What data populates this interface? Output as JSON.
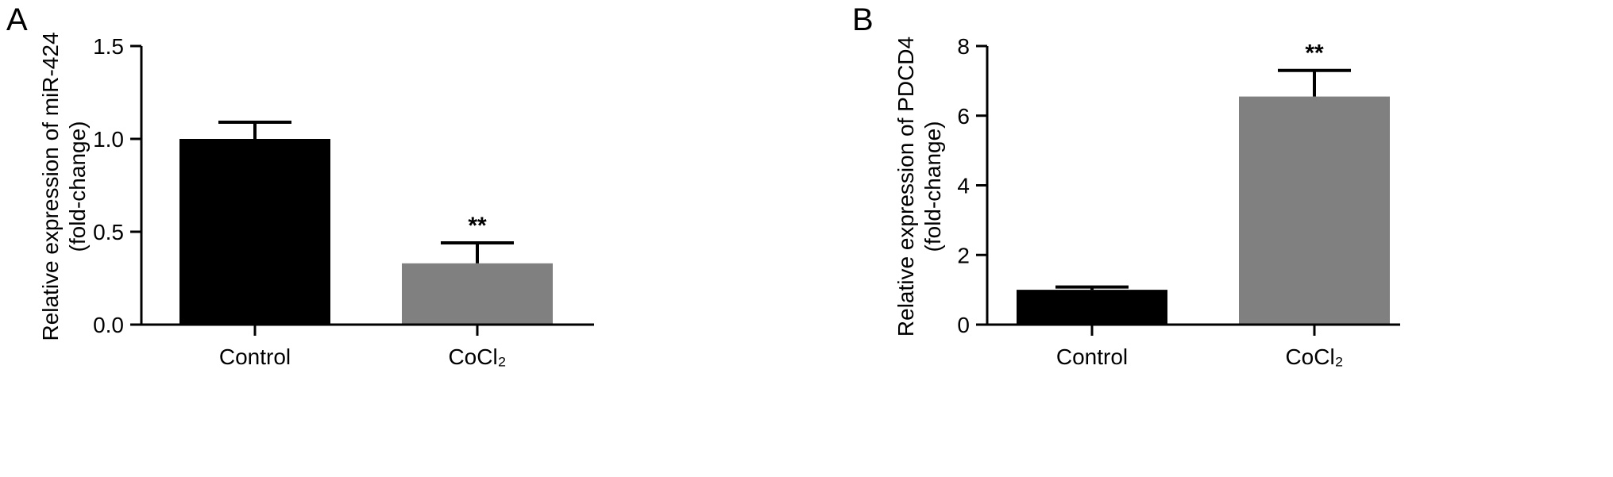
{
  "chart_data": [
    {
      "type": "bar",
      "panel_label": "A",
      "categories": [
        "Control",
        "CoCl₂"
      ],
      "values": [
        1.0,
        0.33
      ],
      "errors": [
        0.09,
        0.11
      ],
      "significance": [
        "",
        "**"
      ],
      "bar_colors": [
        "#000000",
        "#808080"
      ],
      "ylabel": "Relative expression of miR-424",
      "ylabel_line2": "(fold-change)",
      "ylim": [
        0,
        1.5
      ],
      "yticks": [
        0.0,
        0.5,
        1.0,
        1.5
      ],
      "ytick_labels": [
        "0.0",
        "0.5",
        "1.0",
        "1.5"
      ],
      "grid": false
    },
    {
      "type": "bar",
      "panel_label": "B",
      "categories": [
        "Control",
        "CoCl₂"
      ],
      "values": [
        1.0,
        6.55
      ],
      "errors": [
        0.08,
        0.75
      ],
      "significance": [
        "",
        "**"
      ],
      "bar_colors": [
        "#000000",
        "#808080"
      ],
      "ylabel": "Relative expression of PDCD4",
      "ylabel_line2": "(fold-change)",
      "ylim": [
        0,
        8
      ],
      "yticks": [
        0,
        2,
        4,
        6,
        8
      ],
      "ytick_labels": [
        "0",
        "2",
        "4",
        "6",
        "8"
      ],
      "grid": false
    }
  ]
}
